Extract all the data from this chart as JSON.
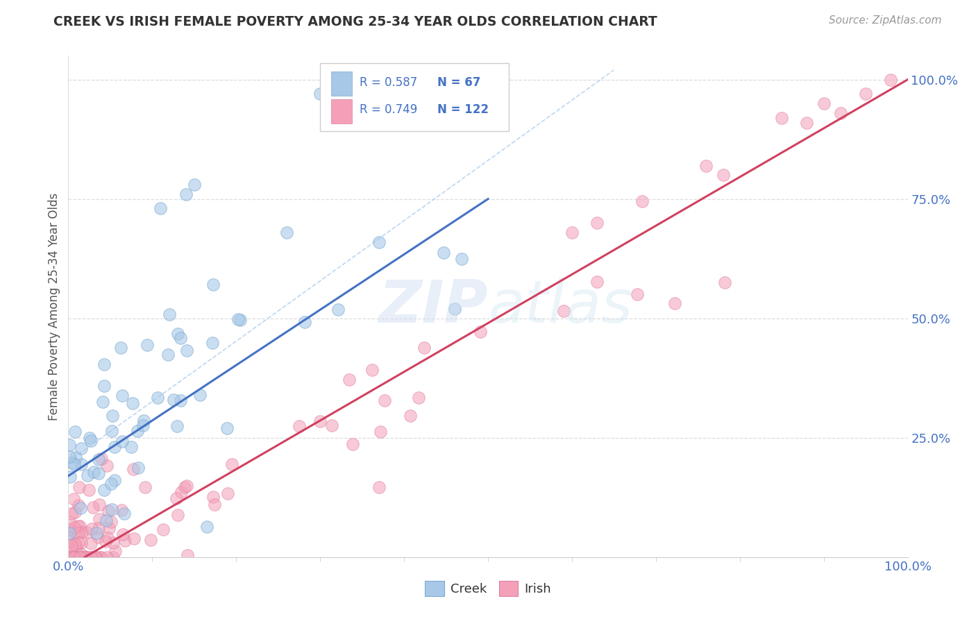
{
  "title": "CREEK VS IRISH FEMALE POVERTY AMONG 25-34 YEAR OLDS CORRELATION CHART",
  "source": "Source: ZipAtlas.com",
  "ylabel": "Female Poverty Among 25-34 Year Olds",
  "creek_R": 0.587,
  "creek_N": 67,
  "irish_R": 0.749,
  "irish_N": 122,
  "blue_color": "#A8C8E8",
  "pink_color": "#F4A0B8",
  "blue_line_color": "#4472C4",
  "pink_line_color": "#D04060",
  "blue_dot_edge": "#7AAAD0",
  "pink_dot_edge": "#E080A0",
  "watermark_color": "#DDEEFF",
  "grid_color": "#DDDDDD",
  "axis_label_color": "#4472C4",
  "title_color": "#333333",
  "source_color": "#999999",
  "ylabel_color": "#555555",
  "ref_line_color": "#BBBBBB",
  "legend_box_color": "#EEEEEE",
  "legend_border_color": "#CCCCCC"
}
